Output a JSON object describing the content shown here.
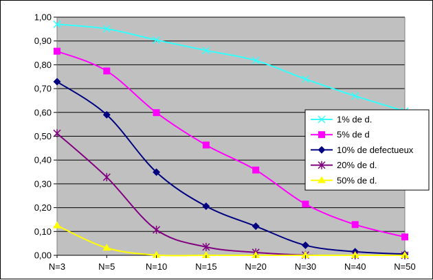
{
  "chart_data": {
    "type": "line",
    "title": "",
    "xlabel": "",
    "ylabel": "",
    "categories": [
      "N=3",
      "N=5",
      "N=10",
      "N=15",
      "N=20",
      "N=30",
      "N=40",
      "N=50"
    ],
    "ylim": [
      0,
      1
    ],
    "y_ticks": [
      "0,00",
      "0,10",
      "0,20",
      "0,30",
      "0,40",
      "0,50",
      "0,60",
      "0,70",
      "0,80",
      "0,90",
      "1,00"
    ],
    "grid": {
      "horizontal": true,
      "vertical": false
    },
    "plot_background": "#c0c0c0",
    "legend_position": "right",
    "series": [
      {
        "name": "1% de d.",
        "color": "#33ffff",
        "marker": "x-cross",
        "values": [
          0.97,
          0.951,
          0.904,
          0.86,
          0.818,
          0.74,
          0.669,
          0.605
        ]
      },
      {
        "name": "5% de d",
        "color": "#ff00ff",
        "marker": "square",
        "values": [
          0.857,
          0.774,
          0.599,
          0.463,
          0.358,
          0.215,
          0.129,
          0.077
        ]
      },
      {
        "name": "10% de defectueux",
        "color": "#000080",
        "marker": "diamond",
        "values": [
          0.729,
          0.59,
          0.349,
          0.206,
          0.122,
          0.042,
          0.015,
          0.005
        ]
      },
      {
        "name": "20% de d.",
        "color": "#800080",
        "marker": "asterisk",
        "values": [
          0.512,
          0.328,
          0.107,
          0.035,
          0.012,
          0.001,
          0.0,
          0.0
        ]
      },
      {
        "name": "50% de d.",
        "color": "#ffff00",
        "marker": "triangle",
        "values": [
          0.125,
          0.031,
          0.001,
          0.0,
          0.0,
          0.0,
          0.0,
          0.0
        ]
      }
    ]
  }
}
